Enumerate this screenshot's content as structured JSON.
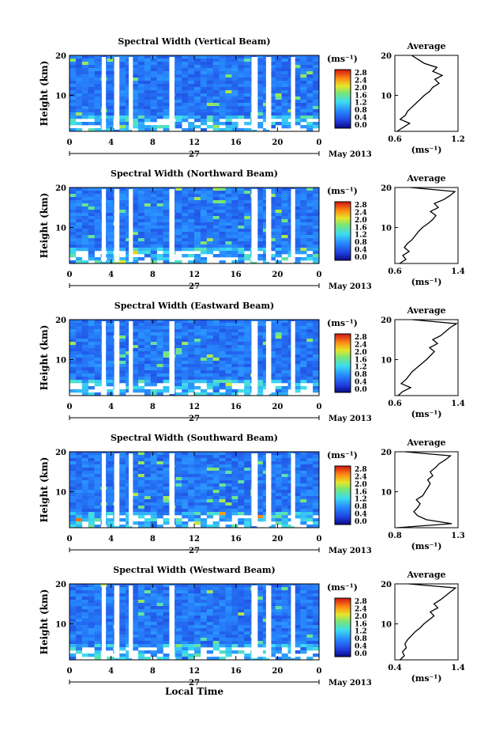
{
  "chart_data": [
    {
      "type": "heatmap",
      "title": "Spectral Width (Vertical Beam)",
      "ylabel": "Height (km)",
      "y_ticks": [
        "20",
        "10"
      ],
      "xlim": [
        0,
        24
      ],
      "ylim": [
        1,
        20
      ],
      "x_ticks": [
        "0",
        "4",
        "8",
        "12",
        "16",
        "20",
        "0"
      ],
      "day_label": "27",
      "date_label": "May 2013",
      "colorbar": {
        "unit": "(ms⁻¹)",
        "ticks": [
          "2.8",
          "2.4",
          "2.0",
          "1.6",
          "1.2",
          "0.8",
          "0.4",
          "0.0"
        ]
      },
      "gaps_hours": [
        [
          3.1,
          3.5
        ],
        [
          4.3,
          4.8
        ],
        [
          5.7,
          6.1
        ],
        [
          9.6,
          10.1
        ],
        [
          17.5,
          18.1
        ],
        [
          18.9,
          19.4
        ],
        [
          21.3,
          21.7
        ]
      ],
      "profile": {
        "title": "Average",
        "xlabel": "(ms⁻¹)",
        "x_ticks": [
          "0.6",
          "1.2"
        ],
        "xlim": [
          0.6,
          1.2
        ],
        "y_ticks": [
          "20",
          "10"
        ],
        "heights": [
          1,
          2,
          3,
          4,
          5,
          6,
          7,
          8,
          9,
          10,
          11,
          12,
          13,
          14,
          15,
          16,
          17,
          18,
          19,
          20
        ],
        "values": [
          0.62,
          0.68,
          0.74,
          0.65,
          0.7,
          0.72,
          0.76,
          0.8,
          0.84,
          0.88,
          0.93,
          0.96,
          1.02,
          0.98,
          1.05,
          0.96,
          1.0,
          0.88,
          0.82,
          0.76
        ]
      }
    },
    {
      "type": "heatmap",
      "title": "Spectral Width (Northward Beam)",
      "ylabel": "Height (km)",
      "y_ticks": [
        "20",
        "10"
      ],
      "xlim": [
        0,
        24
      ],
      "ylim": [
        1,
        20
      ],
      "x_ticks": [
        "0",
        "4",
        "8",
        "12",
        "16",
        "20",
        "0"
      ],
      "day_label": "27",
      "date_label": "May 2013",
      "colorbar": {
        "unit": "(ms⁻¹)",
        "ticks": [
          "2.8",
          "2.4",
          "2.0",
          "1.6",
          "1.2",
          "0.8",
          "0.4",
          "0.0"
        ]
      },
      "gaps_hours": [
        [
          3.1,
          3.5
        ],
        [
          4.3,
          4.8
        ],
        [
          5.7,
          6.1
        ],
        [
          9.6,
          10.1
        ],
        [
          17.5,
          18.1
        ],
        [
          18.9,
          19.4
        ],
        [
          21.3,
          21.7
        ]
      ],
      "profile": {
        "title": "Average",
        "xlabel": "(ms⁻¹)",
        "x_ticks": [
          "0.6",
          "1.4"
        ],
        "xlim": [
          0.6,
          1.4
        ],
        "y_ticks": [
          "20",
          "10"
        ],
        "heights": [
          1,
          2,
          3,
          4,
          5,
          6,
          7,
          8,
          9,
          10,
          11,
          12,
          13,
          14,
          15,
          16,
          17,
          18,
          19,
          20
        ],
        "values": [
          0.66,
          0.74,
          0.7,
          0.78,
          0.72,
          0.76,
          0.82,
          0.86,
          0.9,
          0.95,
          1.02,
          1.08,
          1.12,
          1.05,
          1.15,
          1.1,
          1.22,
          1.3,
          1.36,
          0.8
        ]
      }
    },
    {
      "type": "heatmap",
      "title": "Spectral Width (Eastward Beam)",
      "ylabel": "Height (km)",
      "y_ticks": [
        "20",
        "10"
      ],
      "xlim": [
        0,
        24
      ],
      "ylim": [
        1,
        20
      ],
      "x_ticks": [
        "0",
        "4",
        "8",
        "12",
        "16",
        "20",
        "0"
      ],
      "day_label": "27",
      "date_label": "May 2013",
      "colorbar": {
        "unit": "(ms⁻¹)",
        "ticks": [
          "2.8",
          "2.4",
          "2.0",
          "1.6",
          "1.2",
          "0.8",
          "0.4",
          "0.0"
        ]
      },
      "gaps_hours": [
        [
          3.1,
          3.5
        ],
        [
          4.3,
          4.8
        ],
        [
          5.7,
          6.1
        ],
        [
          9.6,
          10.1
        ],
        [
          17.5,
          18.1
        ],
        [
          18.9,
          19.4
        ],
        [
          21.3,
          21.7
        ]
      ],
      "profile": {
        "title": "Average",
        "xlabel": "(ms⁻¹)",
        "x_ticks": [
          "0.6",
          "1.4"
        ],
        "xlim": [
          0.6,
          1.4
        ],
        "y_ticks": [
          "20",
          "10"
        ],
        "heights": [
          1,
          2,
          3,
          4,
          5,
          6,
          7,
          8,
          9,
          10,
          11,
          12,
          13,
          14,
          15,
          16,
          17,
          18,
          19,
          20
        ],
        "values": [
          0.64,
          0.7,
          0.8,
          0.68,
          0.74,
          0.78,
          0.82,
          0.88,
          0.94,
          1.0,
          1.05,
          1.1,
          1.04,
          1.14,
          1.08,
          1.18,
          1.24,
          1.3,
          1.38,
          0.82
        ]
      }
    },
    {
      "type": "heatmap",
      "title": "Spectral Width (Southward Beam)",
      "ylabel": "Height (km)",
      "y_ticks": [
        "20",
        "10"
      ],
      "xlim": [
        0,
        24
      ],
      "ylim": [
        1,
        20
      ],
      "x_ticks": [
        "0",
        "4",
        "8",
        "12",
        "16",
        "20",
        "0"
      ],
      "day_label": "27",
      "date_label": "May 2013",
      "colorbar": {
        "unit": "(ms⁻¹)",
        "ticks": [
          "2.8",
          "2.4",
          "2.0",
          "1.6",
          "1.2",
          "0.8",
          "0.4",
          "0.0"
        ]
      },
      "gaps_hours": [
        [
          3.1,
          3.5
        ],
        [
          4.3,
          4.8
        ],
        [
          5.7,
          6.1
        ],
        [
          9.6,
          10.1
        ],
        [
          17.5,
          18.1
        ],
        [
          18.9,
          19.4
        ],
        [
          21.3,
          21.7
        ]
      ],
      "profile": {
        "title": "Average",
        "xlabel": "(ms⁻¹)",
        "x_ticks": [
          "0.8",
          "1.3"
        ],
        "xlim": [
          0.8,
          1.3
        ],
        "y_ticks": [
          "20",
          "10"
        ],
        "heights": [
          1,
          2,
          3,
          4,
          5,
          6,
          7,
          8,
          9,
          10,
          11,
          12,
          13,
          14,
          15,
          16,
          17,
          18,
          19,
          20
        ],
        "values": [
          0.82,
          1.25,
          1.05,
          0.98,
          0.95,
          0.98,
          1.0,
          0.97,
          1.02,
          1.04,
          1.06,
          1.08,
          1.06,
          1.1,
          1.08,
          1.12,
          1.15,
          1.2,
          1.24,
          0.88
        ]
      }
    },
    {
      "type": "heatmap",
      "title": "Spectral Width (Westward Beam)",
      "ylabel": "Height (km)",
      "y_ticks": [
        "20",
        "10"
      ],
      "xlim": [
        0,
        24
      ],
      "ylim": [
        1,
        20
      ],
      "x_ticks": [
        "0",
        "4",
        "8",
        "12",
        "16",
        "20",
        "0"
      ],
      "day_label": "27",
      "date_label": "May 2013",
      "xlabel": "Local Time",
      "colorbar": {
        "unit": "(ms⁻¹)",
        "ticks": [
          "2.8",
          "2.4",
          "2.0",
          "1.6",
          "1.2",
          "0.8",
          "0.4",
          "0.0"
        ]
      },
      "gaps_hours": [
        [
          3.1,
          3.5
        ],
        [
          4.3,
          4.8
        ],
        [
          5.7,
          6.1
        ],
        [
          9.6,
          10.1
        ],
        [
          17.5,
          18.1
        ],
        [
          18.9,
          19.4
        ],
        [
          21.3,
          21.7
        ]
      ],
      "profile": {
        "title": "Average",
        "xlabel": "(ms⁻¹)",
        "x_ticks": [
          "0.4",
          "1.4"
        ],
        "xlim": [
          0.4,
          1.4
        ],
        "y_ticks": [
          "20",
          "10"
        ],
        "heights": [
          1,
          2,
          3,
          4,
          5,
          6,
          7,
          8,
          9,
          10,
          11,
          12,
          13,
          14,
          15,
          16,
          17,
          18,
          19,
          20
        ],
        "values": [
          0.48,
          0.55,
          0.52,
          0.58,
          0.56,
          0.6,
          0.66,
          0.72,
          0.8,
          0.86,
          0.94,
          1.02,
          0.96,
          1.08,
          1.02,
          1.12,
          1.2,
          1.28,
          1.36,
          0.62
        ]
      }
    }
  ]
}
